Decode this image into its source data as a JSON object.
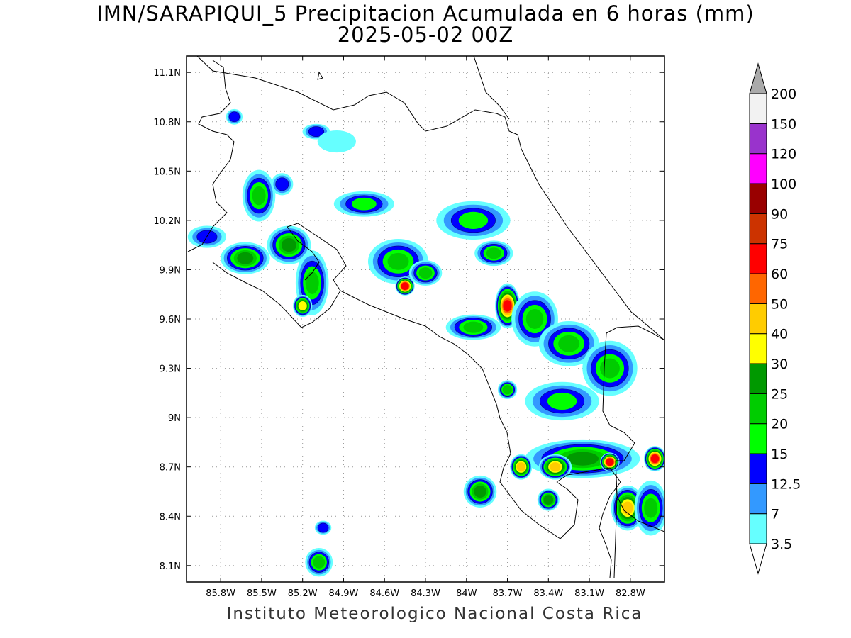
{
  "title_line1": "IMN/SARAPIQUI_5 Precipitacion Acumulada en 6 horas (mm)",
  "title_line2": "2025-05-02 00Z",
  "footer": "Instituto Meteorologico Nacional Costa Rica",
  "map": {
    "lon_range": [
      -86.05,
      -82.55
    ],
    "lat_range": [
      8.0,
      11.2
    ],
    "lon_ticks": [
      {
        "v": -85.8,
        "label": "85.8W"
      },
      {
        "v": -85.5,
        "label": "85.5W"
      },
      {
        "v": -85.2,
        "label": "85.2W"
      },
      {
        "v": -84.9,
        "label": "84.9W"
      },
      {
        "v": -84.6,
        "label": "84.6W"
      },
      {
        "v": -84.3,
        "label": "84.3W"
      },
      {
        "v": -84.0,
        "label": "84W"
      },
      {
        "v": -83.7,
        "label": "83.7W"
      },
      {
        "v": -83.4,
        "label": "83.4W"
      },
      {
        "v": -83.1,
        "label": "83.1W"
      },
      {
        "v": -82.8,
        "label": "82.8W"
      }
    ],
    "lat_ticks": [
      {
        "v": 11.1,
        "label": "11.1N"
      },
      {
        "v": 10.8,
        "label": "10.8N"
      },
      {
        "v": 10.5,
        "label": "10.5N"
      },
      {
        "v": 10.2,
        "label": "10.2N"
      },
      {
        "v": 9.9,
        "label": "9.9N"
      },
      {
        "v": 9.6,
        "label": "9.6N"
      },
      {
        "v": 9.3,
        "label": "9.3N"
      },
      {
        "v": 9.0,
        "label": "9N"
      },
      {
        "v": 8.7,
        "label": "8.7N"
      },
      {
        "v": 8.4,
        "label": "8.4N"
      },
      {
        "v": 8.1,
        "label": "8.1N"
      }
    ],
    "grid": true
  },
  "colorbar": {
    "levels": [
      {
        "label": "3.5",
        "color": "#ffffff"
      },
      {
        "label": "7",
        "color": "#66ffff"
      },
      {
        "label": "12.5",
        "color": "#3399ff"
      },
      {
        "label": "15",
        "color": "#0000ff"
      },
      {
        "label": "20",
        "color": "#00ff00"
      },
      {
        "label": "25",
        "color": "#00cc00"
      },
      {
        "label": "30",
        "color": "#009900"
      },
      {
        "label": "40",
        "color": "#ffff00"
      },
      {
        "label": "50",
        "color": "#ffcc00"
      },
      {
        "label": "60",
        "color": "#ff6600"
      },
      {
        "label": "75",
        "color": "#ff0000"
      },
      {
        "label": "90",
        "color": "#cc3300"
      },
      {
        "label": "100",
        "color": "#990000"
      },
      {
        "label": "120",
        "color": "#ff00ff"
      },
      {
        "label": "150",
        "color": "#9933cc"
      },
      {
        "label": "200",
        "color": "#f2f2f2"
      }
    ],
    "over_color": "#aaaaaa"
  },
  "precip_cells": [
    {
      "lon": -85.9,
      "lat": 10.1,
      "rx": 0.12,
      "ry": 0.05,
      "level": 3
    },
    {
      "lon": -85.52,
      "lat": 10.35,
      "rx": 0.1,
      "ry": 0.14,
      "level": 5
    },
    {
      "lon": -85.35,
      "lat": 10.42,
      "rx": 0.06,
      "ry": 0.05,
      "level": 3
    },
    {
      "lon": -85.62,
      "lat": 9.97,
      "rx": 0.16,
      "ry": 0.08,
      "level": 6
    },
    {
      "lon": -85.3,
      "lat": 10.05,
      "rx": 0.14,
      "ry": 0.1,
      "level": 6
    },
    {
      "lon": -85.13,
      "lat": 9.82,
      "rx": 0.1,
      "ry": 0.18,
      "level": 5
    },
    {
      "lon": -85.2,
      "lat": 9.68,
      "rx": 0.05,
      "ry": 0.05,
      "level": 7
    },
    {
      "lon": -85.7,
      "lat": 10.83,
      "rx": 0.04,
      "ry": 0.03,
      "level": 3
    },
    {
      "lon": -85.1,
      "lat": 10.74,
      "rx": 0.08,
      "ry": 0.03,
      "level": 3
    },
    {
      "lon": -84.95,
      "lat": 10.68,
      "rx": 0.12,
      "ry": 0.05,
      "level": 1
    },
    {
      "lon": -84.75,
      "lat": 10.3,
      "rx": 0.2,
      "ry": 0.06,
      "level": 4
    },
    {
      "lon": -84.5,
      "lat": 9.95,
      "rx": 0.2,
      "ry": 0.12,
      "level": 5
    },
    {
      "lon": -84.45,
      "lat": 9.8,
      "rx": 0.05,
      "ry": 0.04,
      "level": 10
    },
    {
      "lon": -84.3,
      "lat": 9.88,
      "rx": 0.1,
      "ry": 0.06,
      "level": 5
    },
    {
      "lon": -83.95,
      "lat": 10.2,
      "rx": 0.25,
      "ry": 0.1,
      "level": 4
    },
    {
      "lon": -83.8,
      "lat": 10.0,
      "rx": 0.12,
      "ry": 0.06,
      "level": 5
    },
    {
      "lon": -83.7,
      "lat": 9.68,
      "rx": 0.07,
      "ry": 0.12,
      "level": 10
    },
    {
      "lon": -83.5,
      "lat": 9.6,
      "rx": 0.15,
      "ry": 0.15,
      "level": 5
    },
    {
      "lon": -83.95,
      "lat": 9.55,
      "rx": 0.18,
      "ry": 0.06,
      "level": 5
    },
    {
      "lon": -83.25,
      "lat": 9.45,
      "rx": 0.2,
      "ry": 0.12,
      "level": 5
    },
    {
      "lon": -82.95,
      "lat": 9.3,
      "rx": 0.18,
      "ry": 0.15,
      "level": 5
    },
    {
      "lon": -83.3,
      "lat": 9.1,
      "rx": 0.25,
      "ry": 0.1,
      "level": 4
    },
    {
      "lon": -83.15,
      "lat": 8.75,
      "rx": 0.4,
      "ry": 0.1,
      "level": 6
    },
    {
      "lon": -82.95,
      "lat": 8.73,
      "rx": 0.05,
      "ry": 0.04,
      "level": 10
    },
    {
      "lon": -83.35,
      "lat": 8.7,
      "rx": 0.1,
      "ry": 0.06,
      "level": 8
    },
    {
      "lon": -83.6,
      "lat": 8.7,
      "rx": 0.06,
      "ry": 0.06,
      "level": 8
    },
    {
      "lon": -83.9,
      "lat": 8.55,
      "rx": 0.1,
      "ry": 0.08,
      "level": 6
    },
    {
      "lon": -82.82,
      "lat": 8.45,
      "rx": 0.1,
      "ry": 0.12,
      "level": 8
    },
    {
      "lon": -82.62,
      "lat": 8.75,
      "rx": 0.06,
      "ry": 0.06,
      "level": 10
    },
    {
      "lon": -82.65,
      "lat": 8.45,
      "rx": 0.1,
      "ry": 0.15,
      "level": 5
    },
    {
      "lon": -83.4,
      "lat": 8.5,
      "rx": 0.06,
      "ry": 0.05,
      "level": 6
    },
    {
      "lon": -85.08,
      "lat": 8.12,
      "rx": 0.08,
      "ry": 0.07,
      "level": 5
    },
    {
      "lon": -85.05,
      "lat": 8.33,
      "rx": 0.04,
      "ry": 0.025,
      "level": 3
    },
    {
      "lon": -83.7,
      "lat": 9.17,
      "rx": 0.05,
      "ry": 0.04,
      "level": 5
    }
  ]
}
